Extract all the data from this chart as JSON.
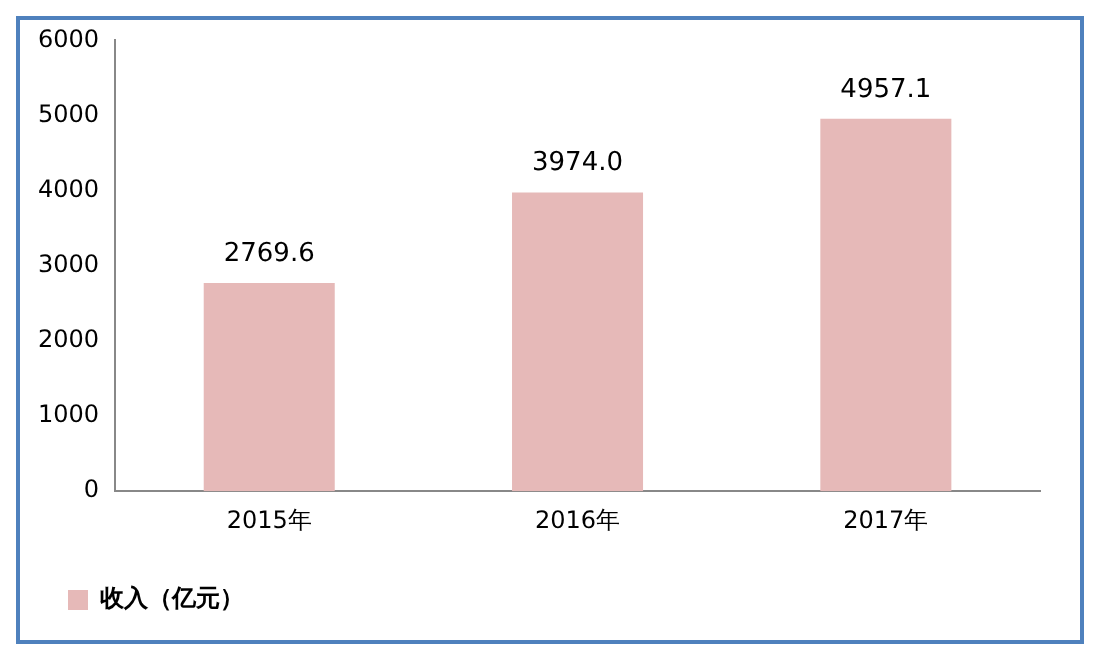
{
  "chart_data": {
    "type": "bar",
    "categories": [
      "2015年",
      "2016年",
      "2017年"
    ],
    "series": [
      {
        "name": "收入（亿元）",
        "color": "#e6b9b8",
        "values": [
          2769.6,
          3974.0,
          4957.1
        ]
      }
    ],
    "value_labels": [
      "2769.6",
      "3974.0",
      "4957.1"
    ],
    "ylim": [
      0,
      6000
    ],
    "yticks": [
      0,
      1000,
      2000,
      3000,
      4000,
      5000,
      6000
    ],
    "grid": false,
    "legend": "bottom left"
  }
}
